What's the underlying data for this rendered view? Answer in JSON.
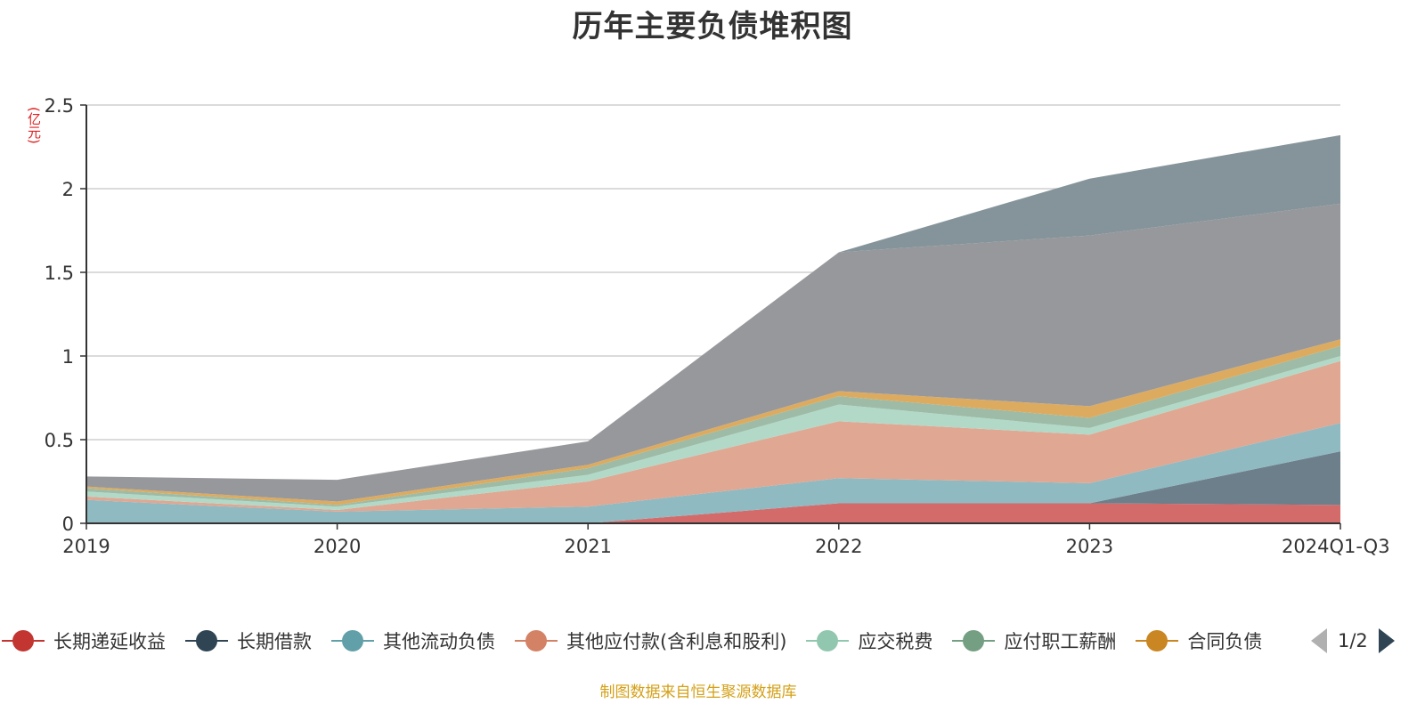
{
  "title": "历年主要负债堆积图",
  "unit_label": "(亿元)",
  "source_note": "制图数据来自恒生聚源数据库",
  "legend": {
    "page_indicator": "1/2",
    "items": [
      {
        "name": "长期递延收益",
        "color": "#c23531"
      },
      {
        "name": "长期借款",
        "color": "#2f4554"
      },
      {
        "name": "其他流动负债",
        "color": "#61a0a8"
      },
      {
        "name": "其他应付款(含利息和股利)",
        "color": "#d48265"
      },
      {
        "name": "应交税费",
        "color": "#91c7ae"
      },
      {
        "name": "应付职工薪酬",
        "color": "#749f83"
      },
      {
        "name": "合同负债",
        "color": "#ca8622"
      }
    ]
  },
  "chart_data": {
    "type": "area",
    "stacked": true,
    "title": "历年主要负债堆积图",
    "ylabel": "(亿元)",
    "categories": [
      "2019",
      "2020",
      "2021",
      "2022",
      "2023",
      "2024Q1-Q3"
    ],
    "ylim": [
      0,
      2.5
    ],
    "yticks": [
      0,
      0.5,
      1,
      1.5,
      2,
      2.5
    ],
    "grid": true,
    "legend_position": "bottom",
    "series": [
      {
        "name": "长期递延收益",
        "color": "#d46b6b",
        "values": [
          0,
          0,
          0,
          0.12,
          0.12,
          0.11
        ]
      },
      {
        "name": "长期借款",
        "color": "#6d7f8b",
        "values": [
          0,
          0,
          0,
          0,
          0,
          0.32
        ]
      },
      {
        "name": "其他流动负债",
        "color": "#90bac1",
        "values": [
          0.14,
          0.07,
          0.1,
          0.15,
          0.12,
          0.17
        ]
      },
      {
        "name": "其他应付款(含利息和股利)",
        "color": "#e0a793",
        "values": [
          0.02,
          0.01,
          0.15,
          0.34,
          0.29,
          0.37
        ]
      },
      {
        "name": "应交税费",
        "color": "#b2d9c7",
        "values": [
          0.03,
          0.02,
          0.04,
          0.1,
          0.04,
          0.03
        ]
      },
      {
        "name": "应付职工薪酬",
        "color": "#9dbba6",
        "values": [
          0.02,
          0.01,
          0.04,
          0.05,
          0.06,
          0.06
        ]
      },
      {
        "name": "合同负债",
        "color": "#ddab5f",
        "values": [
          0.01,
          0.02,
          0.02,
          0.03,
          0.07,
          0.04
        ]
      },
      {
        "color": "#97989c",
        "values": [
          0.06,
          0.13,
          0.14,
          0.83,
          1.02,
          0.81
        ]
      },
      {
        "color": "#85949a",
        "values": [
          0,
          0,
          0,
          0,
          0.34,
          0.41
        ]
      }
    ]
  }
}
